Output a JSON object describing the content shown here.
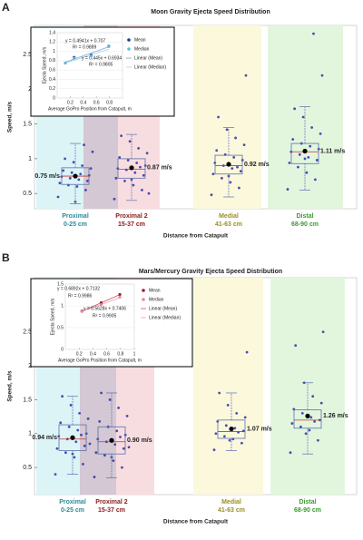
{
  "chart_data": [
    {
      "type": "box",
      "panel": "A",
      "title": "Moon Gravity Ejecta Speed Distribution",
      "y_label": "Speed, m/s",
      "x_label": "Distance from Catapult",
      "categories": [
        "Proximal",
        "Proximal 2",
        "Medial",
        "Distal"
      ],
      "ranges": [
        "0-25 cm",
        "15-37 cm",
        "41-63 cm",
        "68-90 cm"
      ],
      "category_colors": [
        "#2a8a9a",
        "#8b1a1a",
        "#9a9020",
        "#3a9a30"
      ],
      "band_colors": [
        "#dcf4f6",
        "#f8dde0",
        "#fbf8dc",
        "#e2f6de"
      ],
      "ylim": [
        0.28,
        2.92
      ],
      "yticks": [
        0.5,
        1,
        1.5,
        2,
        2.5
      ],
      "whisker_low": [
        0.35,
        0.4,
        0.45,
        0.55
      ],
      "q1": [
        0.63,
        0.72,
        0.78,
        0.93
      ],
      "median": [
        0.75,
        0.85,
        0.9,
        1.1
      ],
      "q3": [
        0.87,
        1.0,
        1.05,
        1.22
      ],
      "whisker_high": [
        1.22,
        1.35,
        1.45,
        1.75
      ],
      "means": [
        0.75,
        0.87,
        0.92,
        1.11
      ],
      "mean_labels": [
        "0.75 m/s",
        "0.87 m/s",
        "0.92 m/s",
        "1.11 m/s"
      ],
      "points": [
        [
          0.45,
          0.55,
          0.6,
          0.62,
          0.65,
          0.68,
          0.7,
          0.72,
          0.74,
          0.76,
          0.78,
          0.8,
          0.83,
          0.86,
          0.9,
          0.95,
          1.0,
          1.1,
          1.2,
          0.38
        ],
        [
          0.42,
          0.55,
          0.62,
          0.68,
          0.72,
          0.76,
          0.8,
          0.84,
          0.86,
          0.9,
          0.94,
          0.98,
          1.02,
          1.08,
          1.15,
          1.25,
          1.33,
          0.5,
          0.88,
          0.7
        ],
        [
          0.48,
          0.58,
          0.66,
          0.72,
          0.78,
          0.82,
          0.86,
          0.9,
          0.94,
          0.98,
          1.02,
          1.06,
          1.12,
          1.2,
          1.3,
          1.42,
          1.6,
          2.2,
          0.88,
          0.75
        ],
        [
          0.56,
          0.7,
          0.8,
          0.88,
          0.94,
          0.98,
          1.02,
          1.06,
          1.1,
          1.14,
          1.18,
          1.22,
          1.28,
          1.36,
          1.45,
          1.6,
          1.72,
          2.2,
          2.8,
          1.0
        ]
      ],
      "point_color": "#2a2fa8",
      "box_color": "#5a6fb0",
      "median_color": "#d03030",
      "mean_color": "#000000"
    },
    {
      "type": "line",
      "x_label": "Average GoPro Position from Catapult, m",
      "y_label": "Ejecta Speed, m/s",
      "x": [
        0.125,
        0.26,
        0.52,
        0.79
      ],
      "xlim": [
        0,
        1
      ],
      "xticks": [
        0.2,
        0.4,
        0.6,
        0.8
      ],
      "ylim": [
        0,
        1.4
      ],
      "yticks": [
        0,
        0.2,
        0.4,
        0.6,
        0.8,
        1,
        1.2,
        1.4
      ],
      "series": [
        {
          "name": "Mean",
          "color": "#1f3e8c",
          "values": [
            0.75,
            0.87,
            0.92,
            1.11
          ]
        },
        {
          "name": "Median",
          "color": "#5bc0e0",
          "values": [
            0.75,
            0.85,
            0.9,
            1.1
          ]
        }
      ],
      "fits": [
        {
          "name": "Linear (Mean)",
          "color": "#7fa0d0",
          "slope": 0.4941,
          "intercept": 0.707,
          "equation": "y = 0.4941x + 0.707",
          "r2": "R² = 0.9889"
        },
        {
          "name": "Linear (Median)",
          "color": "#9fd6e8",
          "slope": 0.445,
          "intercept": 0.6934,
          "equation": "y = 0.445x + 0.6934",
          "r2": "R² = 0.9805"
        }
      ]
    },
    {
      "type": "box",
      "panel": "B",
      "title": "Mars/Mercury Gravity Ejecta Speed Distribution",
      "y_label": "Speed, m/s",
      "x_label": "Distance from Catapult",
      "categories": [
        "Proximal",
        "Proximal 2",
        "Medial",
        "Distal"
      ],
      "ranges": [
        "0-25 cm",
        "15-37 cm",
        "41-63 cm",
        "68-90 cm"
      ],
      "category_colors": [
        "#2a8a9a",
        "#8b1a1a",
        "#9a9020",
        "#3a9a30"
      ],
      "band_colors": [
        "#dcf4f6",
        "#f8dde0",
        "#fbf8dc",
        "#e2f6de"
      ],
      "ylim": [
        0.1,
        3.3
      ],
      "yticks": [
        0.5,
        1,
        1.5,
        2,
        2.5
      ],
      "whisker_low": [
        0.4,
        0.35,
        0.75,
        0.7
      ],
      "q1": [
        0.75,
        0.7,
        0.93,
        1.08
      ],
      "median": [
        0.92,
        0.88,
        1.03,
        1.2
      ],
      "q3": [
        1.13,
        1.1,
        1.2,
        1.35
      ],
      "whisker_high": [
        1.55,
        1.6,
        1.6,
        1.75
      ],
      "means": [
        0.94,
        0.9,
        1.07,
        1.26
      ],
      "mean_labels": [
        "0.94 m/s",
        "0.90 m/s",
        "1.07 m/s",
        "1.26 m/s"
      ],
      "points": [
        [
          0.4,
          0.55,
          0.65,
          0.72,
          0.78,
          0.82,
          0.88,
          0.92,
          0.96,
          1.0,
          1.05,
          1.1,
          1.16,
          1.22,
          1.3,
          1.42,
          1.55,
          0.85,
          0.98,
          0.7
        ],
        [
          0.36,
          0.5,
          0.6,
          0.68,
          0.72,
          0.78,
          0.84,
          0.88,
          0.92,
          0.98,
          1.04,
          1.1,
          1.18,
          1.26,
          1.38,
          1.5,
          1.6,
          0.8,
          0.95,
          0.65
        ],
        [
          0.76,
          0.86,
          0.92,
          0.96,
          1.0,
          1.04,
          1.08,
          1.12,
          1.18,
          1.24,
          1.3,
          1.42,
          1.6,
          2.2,
          1.02,
          0.9
        ],
        [
          0.72,
          0.9,
          1.05,
          1.1,
          1.15,
          1.2,
          1.24,
          1.3,
          1.36,
          1.45,
          1.55,
          1.75,
          2.3,
          2.5,
          1.18,
          1.0
        ]
      ],
      "point_color": "#2a2fa8",
      "box_color": "#5a6fb0",
      "median_color": "#d03030",
      "mean_color": "#000000"
    },
    {
      "type": "line",
      "x_label": "Average GoPro Position from Catapult, m",
      "y_label": "Ejecta Speed, m/s",
      "x": [
        0.24,
        0.52,
        0.79
      ],
      "xlim": [
        0,
        1
      ],
      "xticks": [
        0.2,
        0.4,
        0.6,
        0.8,
        1
      ],
      "ylim": [
        0,
        1.5
      ],
      "yticks": [
        0,
        0.5,
        1,
        1.5
      ],
      "series": [
        {
          "name": "Mean",
          "color": "#a01c2c",
          "values": [
            0.88,
            1.07,
            1.26
          ]
        },
        {
          "name": "Median",
          "color": "#e68a9a",
          "values": [
            0.87,
            1.03,
            1.2
          ]
        }
      ],
      "fits": [
        {
          "name": "Linear (Mean)",
          "color": "#d05060",
          "slope": 0.6892,
          "intercept": 0.7132,
          "equation": "y = 0.6892x + 0.7132",
          "r2": "R² = 0.9986"
        },
        {
          "name": "Linear (Median)",
          "color": "#f0a0b0",
          "slope": 0.5628,
          "intercept": 0.7406,
          "equation": "y = 0.5628x + 0.7406",
          "r2": "R² = 0.9905"
        }
      ]
    }
  ]
}
